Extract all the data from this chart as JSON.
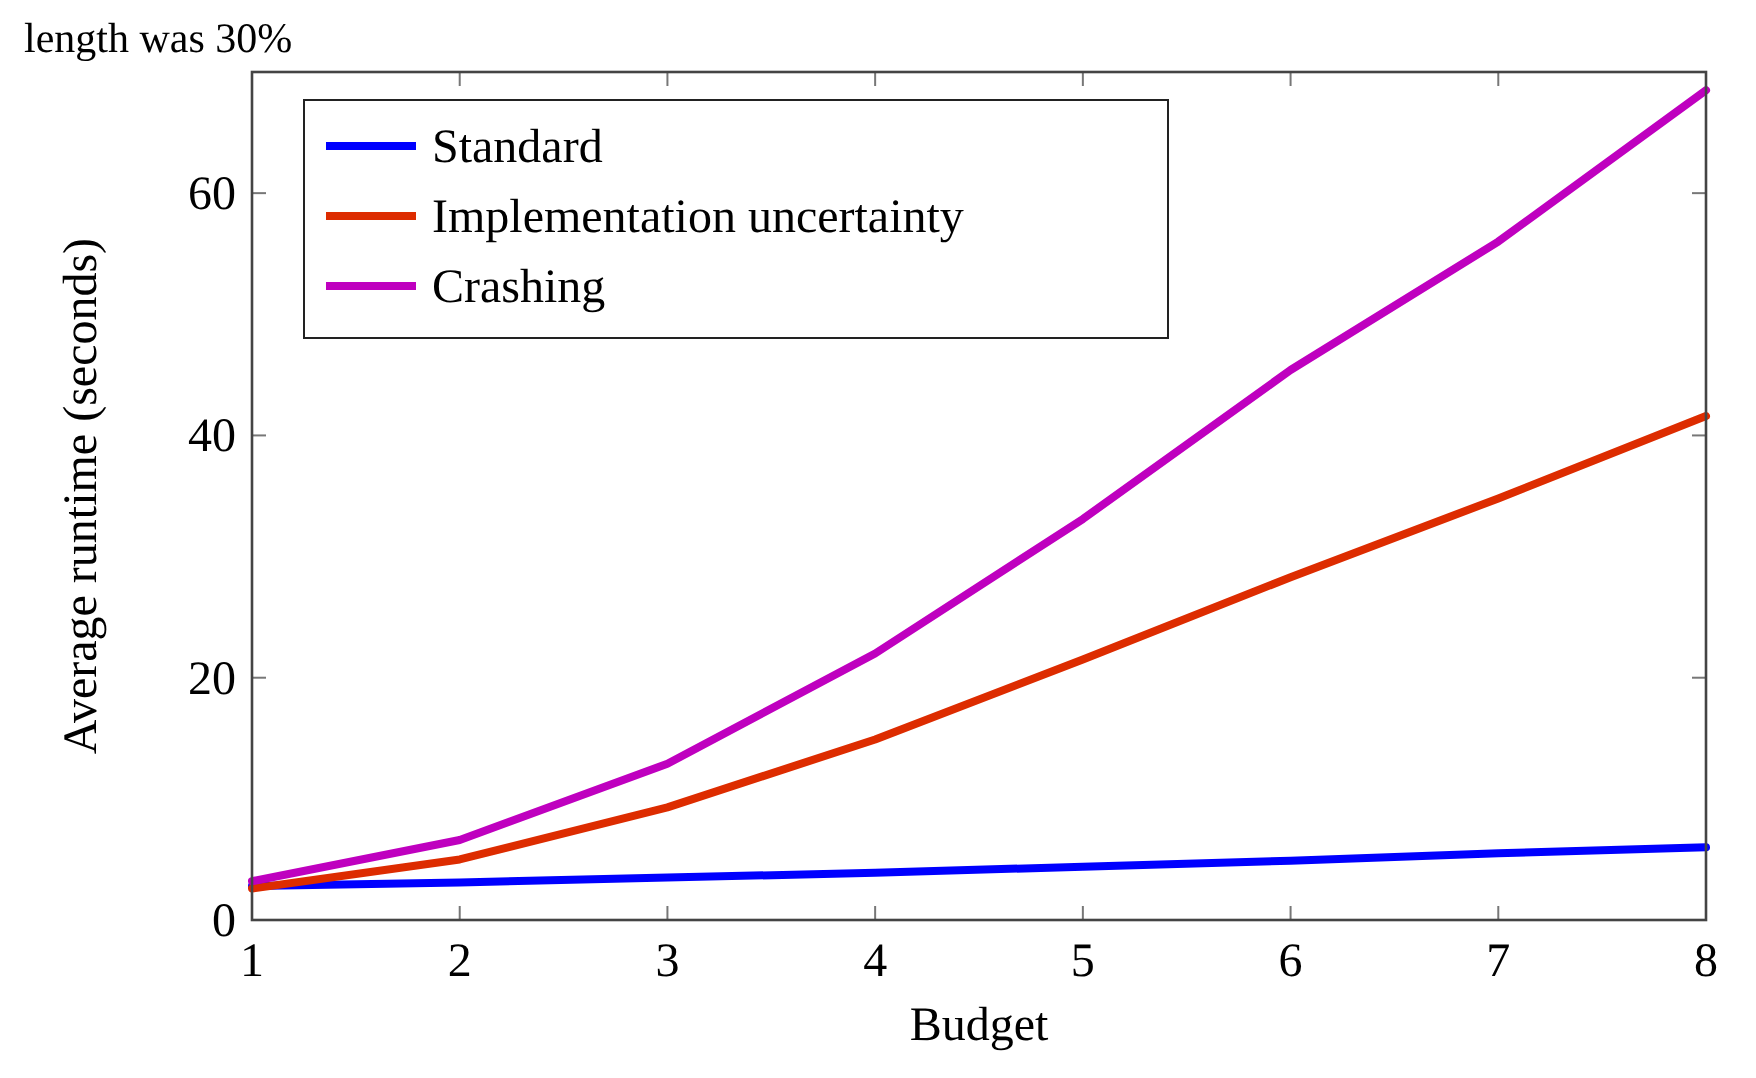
{
  "chart_data": {
    "type": "line",
    "annotations": [
      "length was 30%"
    ],
    "xlabel": "Budget",
    "ylabel": "Average runtime (seconds)",
    "x": [
      1,
      2,
      3,
      4,
      5,
      6,
      7,
      8
    ],
    "xlim": [
      1,
      8
    ],
    "xticks": [
      1,
      2,
      3,
      4,
      5,
      6,
      7,
      8
    ],
    "ylim": [
      0,
      70
    ],
    "yticks": [
      0,
      20,
      40,
      60
    ],
    "legend": "top left",
    "grid": false,
    "line_style": "solid",
    "marker": "none",
    "series": [
      {
        "name": "Standard",
        "color": "#0000ff",
        "values": [
          2.8,
          3.1,
          3.5,
          3.9,
          4.4,
          4.9,
          5.5,
          6.0
        ]
      },
      {
        "name": "Implementation uncertainty",
        "color": "#dd2c00",
        "values": [
          2.6,
          5.0,
          9.3,
          14.9,
          21.5,
          28.3,
          34.8,
          41.6
        ]
      },
      {
        "name": "Crashing",
        "color": "#bf00bf",
        "values": [
          3.2,
          6.6,
          12.9,
          22.0,
          33.1,
          45.4,
          56.0,
          68.5
        ]
      }
    ]
  }
}
